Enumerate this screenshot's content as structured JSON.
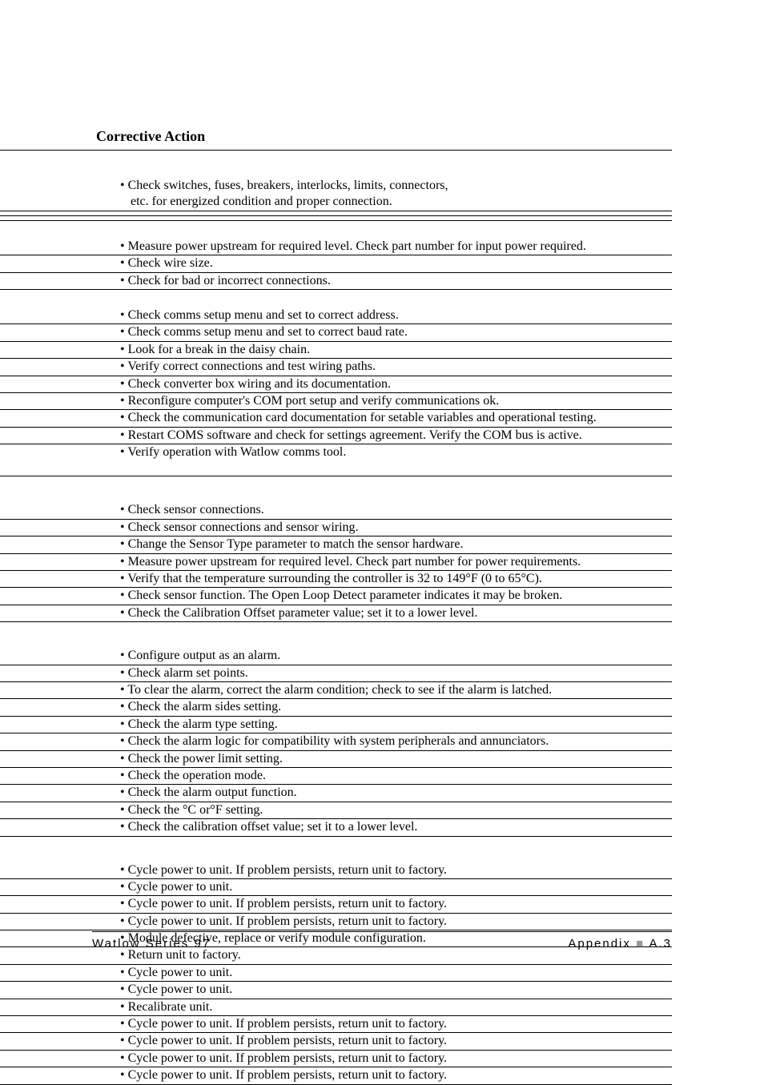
{
  "header": {
    "title": "Corrective Action"
  },
  "sections": [
    {
      "items": [
        {
          "text": "• Check switches, fuses, breakers, interlocks, limits, connectors,",
          "border": false,
          "cont": false
        },
        {
          "text": "etc. for energized condition and proper connection.",
          "border": true,
          "cont": true
        }
      ],
      "trailing_rules": 2,
      "gap_after": "med"
    },
    {
      "items": [
        {
          "text": "• Measure power upstream for required level. Check part number for input power required.",
          "border": true
        },
        {
          "text": "• Check wire size.",
          "border": true
        },
        {
          "text": "• Check for bad or incorrect connections.",
          "border": true
        }
      ],
      "trailing_rules": 0,
      "gap_after": "med"
    },
    {
      "items": [
        {
          "text": "• Check comms setup menu and set to correct address.",
          "border": true
        },
        {
          "text": "• Check comms setup menu and set to correct baud rate.",
          "border": true
        },
        {
          "text": "• Look for a break in the daisy chain.",
          "border": true
        },
        {
          "text": "• Verify correct connections and test wiring paths.",
          "border": true
        },
        {
          "text": "• Check converter box wiring and its documentation.",
          "border": true
        },
        {
          "text": "• Reconfigure computer's COM port setup and verify communications ok.",
          "border": true
        },
        {
          "text": "• Check the communication card documentation for setable variables and operational testing.",
          "border": true
        },
        {
          "text": "• Restart COMS software and check for settings agreement. Verify the COM bus is active.",
          "border": true
        },
        {
          "text": "• Verify operation with Watlow comms tool.",
          "border": false
        }
      ],
      "trailing_rules": 1,
      "gap_after": "large",
      "gap_before_trailing": 14
    },
    {
      "items": [
        {
          "text": "• Check sensor connections.",
          "border": true
        },
        {
          "text": "• Check sensor connections and sensor wiring.",
          "border": true
        },
        {
          "text": "• Change the Sensor Type parameter to match the sensor hardware.",
          "border": true
        },
        {
          "text": "• Measure power upstream for required level. Check part number for power requirements.",
          "border": true
        },
        {
          "text": "• Verify that the temperature surrounding the controller is 32 to 149°F (0 to 65°C).",
          "border": true
        },
        {
          "text": "• Check sensor function. The Open Loop Detect parameter indicates it may be broken.",
          "border": true
        },
        {
          "text": "• Check the Calibration Offset parameter value; set it to a lower level.",
          "border": true
        }
      ],
      "trailing_rules": 0,
      "gap_after": "large"
    },
    {
      "items": [
        {
          "text": "• Configure output as an alarm.",
          "border": true
        },
        {
          "text": "• Check alarm set points.",
          "border": true
        },
        {
          "text": "• To clear the alarm, correct the alarm condition; check to see if the alarm is latched.",
          "border": true
        },
        {
          "text": "• Check the alarm sides setting.",
          "border": true
        },
        {
          "text": "• Check the alarm type setting.",
          "border": true
        },
        {
          "text": "• Check the alarm logic for compatibility with system peripherals and annunciators.",
          "border": true
        },
        {
          "text": "• Check the power limit setting.",
          "border": true
        },
        {
          "text": "• Check the operation mode.",
          "border": true
        },
        {
          "text": "• Check the alarm output function.",
          "border": true
        },
        {
          "text": "• Check the °C or°F setting.",
          "border": true
        },
        {
          "text": "• Check the calibration offset value; set it to a lower level.",
          "border": true
        }
      ],
      "trailing_rules": 0,
      "gap_after": "large"
    },
    {
      "items": [
        {
          "text": "• Cycle power to unit. If problem persists, return unit to factory.",
          "border": true
        },
        {
          "text": "• Cycle power to unit.",
          "border": true
        },
        {
          "text": "• Cycle power to unit. If problem persists, return unit to factory.",
          "border": true
        },
        {
          "text": "• Cycle power to unit. If problem persists, return unit to factory.",
          "border": true
        },
        {
          "text": "• Module defective, replace or verify module configuration.",
          "border": true
        },
        {
          "text": "• Return unit to factory.",
          "border": true
        },
        {
          "text": "• Cycle power to unit.",
          "border": true
        },
        {
          "text": "• Cycle power to unit.",
          "border": true
        },
        {
          "text": "• Recalibrate unit.",
          "border": true
        },
        {
          "text": "• Cycle power to unit. If problem persists, return unit to factory.",
          "border": true
        },
        {
          "text": "• Cycle power to unit. If problem persists, return unit to factory.",
          "border": true
        },
        {
          "text": "• Cycle power to unit. If problem persists, return unit to factory.",
          "border": true
        },
        {
          "text": "• Cycle power to unit. If problem persists, return unit to factory.",
          "border": true
        }
      ],
      "trailing_rules": 0,
      "gap_after": "none"
    }
  ],
  "footer": {
    "left": "Watlow Series 97",
    "right_prefix": "Appendix",
    "right_page": "A.3"
  },
  "colors": {
    "rule": "#000000",
    "square": "#999999",
    "bg": "#ffffff"
  }
}
